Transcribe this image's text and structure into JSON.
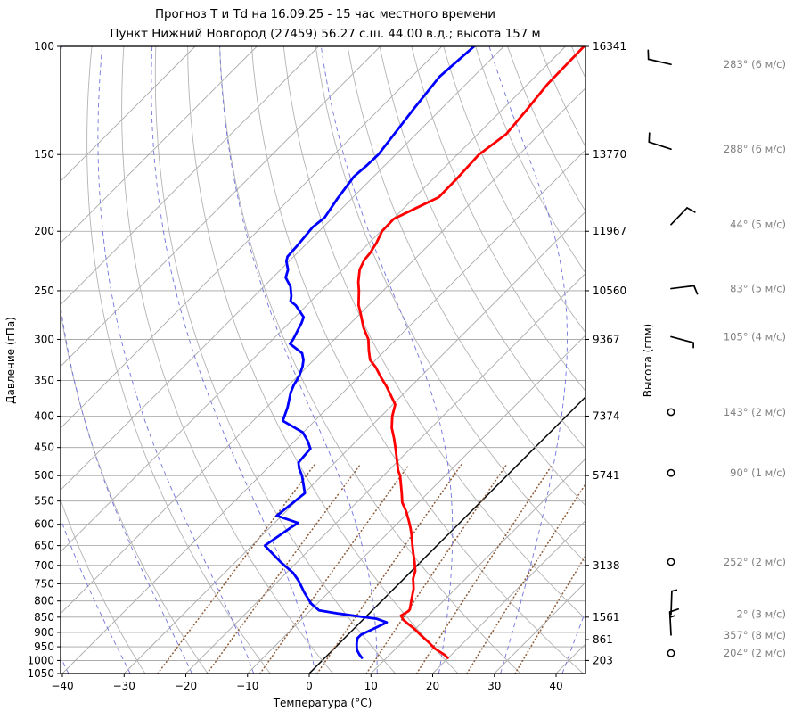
{
  "title": {
    "line1": "Прогноз Т и Td на 16.09.25 - 15 час местного времени",
    "line2": "Пункт Нижний Новгород (27459) 56.27 с.ш. 44.00 в.д.; высота 157 м"
  },
  "axes": {
    "x": {
      "label": "Температура (°C)",
      "ticks": [
        -40,
        -30,
        -20,
        -10,
        0,
        10,
        20,
        30,
        40
      ],
      "range": [
        -40,
        44.8
      ]
    },
    "y_left": {
      "label": "Давление (гПа)",
      "scale": "log",
      "ticks": [
        100,
        150,
        200,
        250,
        300,
        350,
        400,
        450,
        500,
        550,
        600,
        650,
        700,
        750,
        800,
        850,
        900,
        950,
        1000,
        1050
      ],
      "range": [
        100,
        1050
      ]
    },
    "y_right": {
      "label": "Высота (гпм)",
      "entries": [
        {
          "p": 100,
          "text": "16341"
        },
        {
          "p": 150,
          "text": "13770"
        },
        {
          "p": 200,
          "text": "11967"
        },
        {
          "p": 250,
          "text": "10560"
        },
        {
          "p": 300,
          "text": "9367"
        },
        {
          "p": 400,
          "text": "7374"
        },
        {
          "p": 500,
          "text": "5741"
        },
        {
          "p": 700,
          "text": "3138"
        },
        {
          "p": 850,
          "text": "1561"
        },
        {
          "p": 925,
          "text": "861"
        },
        {
          "p": 1000,
          "text": "203"
        }
      ]
    }
  },
  "chart_data": {
    "type": "line",
    "variant": "skew-t-log-p",
    "grid": true,
    "temperature_series": {
      "name": "T",
      "color": "#ff0000",
      "points_p_t": [
        [
          100,
          -57.0
        ],
        [
          115,
          -56.8
        ],
        [
          127,
          -56.0
        ],
        [
          139,
          -55.4
        ],
        [
          150,
          -56.5
        ],
        [
          163,
          -56.2
        ],
        [
          176,
          -56.1
        ],
        [
          184,
          -58.2
        ],
        [
          191,
          -59.9
        ],
        [
          200,
          -59.8
        ],
        [
          209,
          -58.8
        ],
        [
          217,
          -58.2
        ],
        [
          223,
          -58.0
        ],
        [
          231,
          -57.2
        ],
        [
          242,
          -55.4
        ],
        [
          250,
          -53.9
        ],
        [
          264,
          -51.6
        ],
        [
          272,
          -50.0
        ],
        [
          287,
          -47.2
        ],
        [
          300,
          -44.5
        ],
        [
          313,
          -42.6
        ],
        [
          324,
          -40.9
        ],
        [
          333,
          -38.8
        ],
        [
          346,
          -36.3
        ],
        [
          357,
          -34.1
        ],
        [
          370,
          -31.8
        ],
        [
          383,
          -29.6
        ],
        [
          400,
          -28.2
        ],
        [
          418,
          -26.4
        ],
        [
          435,
          -24.3
        ],
        [
          452,
          -22.4
        ],
        [
          474,
          -20.1
        ],
        [
          490,
          -18.5
        ],
        [
          500,
          -17.3
        ],
        [
          534,
          -14.2
        ],
        [
          553,
          -12.6
        ],
        [
          571,
          -10.6
        ],
        [
          591,
          -8.7
        ],
        [
          609,
          -7.1
        ],
        [
          625,
          -5.8
        ],
        [
          647,
          -4.2
        ],
        [
          669,
          -2.6
        ],
        [
          691,
          -1.0
        ],
        [
          715,
          0.6
        ],
        [
          736,
          1.5
        ],
        [
          764,
          3.2
        ],
        [
          800,
          4.8
        ],
        [
          825,
          5.9
        ],
        [
          831,
          6.0
        ],
        [
          845,
          5.5
        ],
        [
          858,
          6.5
        ],
        [
          871,
          7.9
        ],
        [
          888,
          9.8
        ],
        [
          911,
          12.0
        ],
        [
          933,
          14.2
        ],
        [
          956,
          16.3
        ],
        [
          979,
          18.9
        ],
        [
          990,
          19.9
        ]
      ]
    },
    "dewpoint_series": {
      "name": "Td",
      "color": "#0000ff",
      "points_p_t": [
        [
          100,
          -74.8
        ],
        [
          112,
          -75.5
        ],
        [
          126,
          -74.5
        ],
        [
          141,
          -73.4
        ],
        [
          150,
          -72.8
        ],
        [
          156,
          -72.9
        ],
        [
          163,
          -73.2
        ],
        [
          177,
          -72.3
        ],
        [
          190,
          -71.3
        ],
        [
          197,
          -71.7
        ],
        [
          205,
          -71.4
        ],
        [
          211,
          -71.2
        ],
        [
          220,
          -71.0
        ],
        [
          224,
          -70.4
        ],
        [
          231,
          -68.8
        ],
        [
          238,
          -67.9
        ],
        [
          246,
          -65.7
        ],
        [
          255,
          -64.0
        ],
        [
          260,
          -63.3
        ],
        [
          264,
          -61.8
        ],
        [
          276,
          -58.6
        ],
        [
          282,
          -58.0
        ],
        [
          300,
          -56.7
        ],
        [
          305,
          -56.5
        ],
        [
          316,
          -53.0
        ],
        [
          324,
          -51.7
        ],
        [
          332,
          -50.8
        ],
        [
          344,
          -49.8
        ],
        [
          356,
          -49.2
        ],
        [
          366,
          -48.5
        ],
        [
          387,
          -46.6
        ],
        [
          404,
          -45.4
        ],
        [
          407,
          -45.2
        ],
        [
          425,
          -40.1
        ],
        [
          439,
          -37.9
        ],
        [
          452,
          -36.2
        ],
        [
          476,
          -35.9
        ],
        [
          487,
          -34.8
        ],
        [
          500,
          -33.2
        ],
        [
          534,
          -29.9
        ],
        [
          581,
          -30.8
        ],
        [
          597,
          -26.2
        ],
        [
          610,
          -26.7
        ],
        [
          650,
          -27.9
        ],
        [
          692,
          -22.6
        ],
        [
          720,
          -18.9
        ],
        [
          743,
          -16.6
        ],
        [
          775,
          -13.9
        ],
        [
          808,
          -11.0
        ],
        [
          829,
          -8.6
        ],
        [
          838,
          -5.2
        ],
        [
          846,
          -1.9
        ],
        [
          855,
          2.0
        ],
        [
          867,
          4.3
        ],
        [
          908,
          2.1
        ],
        [
          920,
          2.1
        ],
        [
          940,
          2.9
        ],
        [
          961,
          3.9
        ],
        [
          977,
          5.0
        ],
        [
          990,
          6.0
        ]
      ]
    },
    "winds": [
      {
        "p": 107,
        "dir_deg": 283,
        "speed_ms": 6,
        "label": "283° (6 м/с)"
      },
      {
        "p": 147,
        "dir_deg": 288,
        "speed_ms": 6,
        "label": "288° (6 м/с)"
      },
      {
        "p": 195,
        "dir_deg": 44,
        "speed_ms": 5,
        "label": "44° (5 м/с)"
      },
      {
        "p": 248,
        "dir_deg": 83,
        "speed_ms": 5,
        "label": "83° (5 м/с)"
      },
      {
        "p": 297,
        "dir_deg": 105,
        "speed_ms": 4,
        "label": "105° (4 м/с)"
      },
      {
        "p": 394,
        "dir_deg": 143,
        "speed_ms": 2,
        "label": "143° (2 м/с)"
      },
      {
        "p": 495,
        "dir_deg": 90,
        "speed_ms": 1,
        "label": "90° (1 м/с)"
      },
      {
        "p": 691,
        "dir_deg": 252,
        "speed_ms": 2,
        "label": "252° (2 м/с)"
      },
      {
        "p": 841,
        "dir_deg": 2,
        "speed_ms": 3,
        "label": "2° (3 м/с)"
      },
      {
        "p": 909,
        "dir_deg": 357,
        "speed_ms": 8,
        "label": "357° (8 м/с)"
      },
      {
        "p": 973,
        "dir_deg": 204,
        "speed_ms": 2,
        "label": "204° (2 м/с)"
      }
    ],
    "background": {
      "isotherm_step_c": 10,
      "isotherm_color": "#a8a8a8",
      "zero_isotherm_color": "#000000",
      "dry_adiabat_color": "#b3b3b3",
      "moist_adiabat_color": "#7373dd",
      "mixing_ratio_color": "#8f5e3c",
      "mixing_ratios_gkg": [
        0.5,
        1,
        2,
        4,
        7,
        12,
        20,
        32
      ],
      "pressure_grid_color": "#a0a0a0"
    },
    "wind_label_color": "#7f7f7f"
  }
}
